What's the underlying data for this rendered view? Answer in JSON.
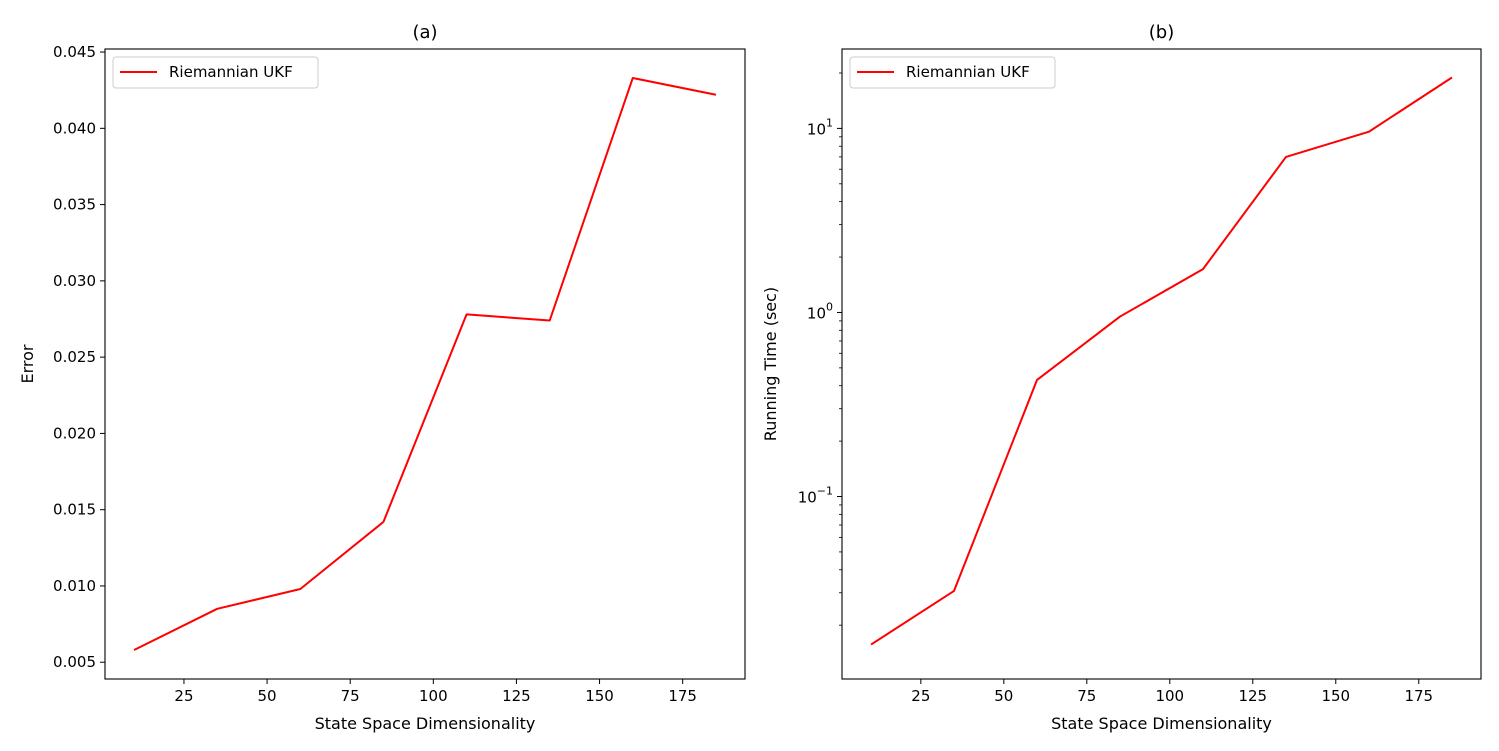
{
  "chart_data": [
    {
      "type": "line",
      "title": "(a)",
      "xlabel": "State Space Dimensionality",
      "ylabel": "Error",
      "xlim": [
        1.25,
        193.75
      ],
      "ylim": [
        0.0039,
        0.0452
      ],
      "yscale": "linear",
      "xticks": [
        25,
        50,
        75,
        100,
        125,
        150,
        175
      ],
      "xtick_labels": [
        "25",
        "50",
        "75",
        "100",
        "125",
        "150",
        "175"
      ],
      "yticks": [
        0.005,
        0.01,
        0.015,
        0.02,
        0.025,
        0.03,
        0.035,
        0.04,
        0.045
      ],
      "ytick_labels": [
        "0.005",
        "0.010",
        "0.015",
        "0.020",
        "0.025",
        "0.030",
        "0.035",
        "0.040",
        "0.045"
      ],
      "grid": false,
      "legend": {
        "position": "upper left"
      },
      "series": [
        {
          "name": "Riemannian UKF",
          "color": "#ff0000",
          "x": [
            10,
            35,
            60,
            85,
            110,
            135,
            160,
            185
          ],
          "y": [
            0.0058,
            0.0085,
            0.0098,
            0.0142,
            0.0278,
            0.0274,
            0.0433,
            0.0422
          ]
        }
      ]
    },
    {
      "type": "line",
      "title": "(b)",
      "xlabel": "State Space Dimensionality",
      "ylabel": "Running Time (sec)",
      "xlim": [
        1.25,
        193.75
      ],
      "ylim": [
        0.0102,
        27
      ],
      "yscale": "log",
      "xticks": [
        25,
        50,
        75,
        100,
        125,
        150,
        175
      ],
      "xtick_labels": [
        "25",
        "50",
        "75",
        "100",
        "125",
        "150",
        "175"
      ],
      "yticks": [
        0.1,
        1,
        10
      ],
      "ytick_labels": [
        {
          "base": "10",
          "exp": "−1"
        },
        {
          "base": "10",
          "exp": "0"
        },
        {
          "base": "10",
          "exp": "1"
        }
      ],
      "grid": false,
      "legend": {
        "position": "upper left"
      },
      "series": [
        {
          "name": "Riemannian UKF",
          "color": "#ff0000",
          "x": [
            10,
            35,
            60,
            85,
            110,
            135,
            160,
            185
          ],
          "y": [
            0.0157,
            0.0307,
            0.43,
            0.95,
            1.72,
            7.0,
            9.6,
            18.9
          ]
        }
      ]
    }
  ]
}
